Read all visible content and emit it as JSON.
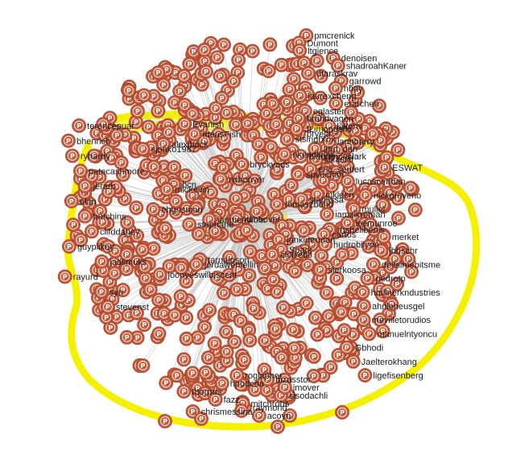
{
  "highlight_color": "#f5f000",
  "node_color": "#c8593b",
  "node_glyph": "P",
  "edge_color": "#c8c8c8",
  "hub": "rwhoover",
  "labels_top": [
    "pmcrenick",
    "Dumont",
    "ltgience",
    "denoisen",
    "shadroahKaner",
    "dtaraskrav",
    "garrowd",
    "nbay",
    "laurexcheng",
    "erarchen",
    "eglaster",
    "brandvagen",
    "laltoriv",
    "pryeitr",
    "lanhbarry",
    "and_dan",
    "blaurenceclark"
  ],
  "labels_right": [
    "ESWAT",
    "lucasceridan",
    "nickgroveno",
    "muller",
    "leemunroe",
    "merket",
    "jhbschr",
    "deltsimebitsme",
    "pedrotp",
    "hmllnerkndustries",
    "ahnleheusgel",
    "mevilletorudios",
    "manuelntyoncu",
    "Gbhodi",
    "Jaelterokhang",
    "ligefisenberg"
  ],
  "labels_left": [
    "terencepuar",
    "bhenrich",
    "ryhardy",
    "petecashmore",
    "jerarb",
    "elan",
    "hutchins",
    "clifddaney",
    "guyplikey",
    "jadlimuks",
    "rayurd",
    "syn",
    "stevenst"
  ],
  "labels_center": [
    "Evanish",
    "JLimongello",
    "IdeasFish",
    "stsingbrox",
    "alexjbock",
    "sjonko1987",
    "nkennkleyl",
    "kikastiff",
    "bryckyads",
    "eric_seufert",
    "spvuchan",
    "rwhoover",
    "bcn",
    "mickevin",
    "mkleen",
    "stablissa",
    "tomaszbond",
    "ehgnsman",
    "iamzikreman",
    "ianmendiola",
    "stephane",
    "rhshellbenis",
    "cartos",
    "jankiderman",
    "hudrobilyon",
    "Spark",
    "clolvetio",
    "tarnaloson",
    "jordawentellin",
    "sierkoosa",
    "joonyeswilbiscent"
  ],
  "labels_bottom": [
    "acoyn",
    "chrismessina",
    "raymond",
    "mitchrobs",
    "fazz",
    "sisodachli",
    "thorpus",
    "jmover",
    "hpodcon",
    "bizasstor",
    "roglapher"
  ],
  "bottom_nodes": [
    "P",
    "P",
    "P",
    "P",
    "P",
    "P"
  ]
}
